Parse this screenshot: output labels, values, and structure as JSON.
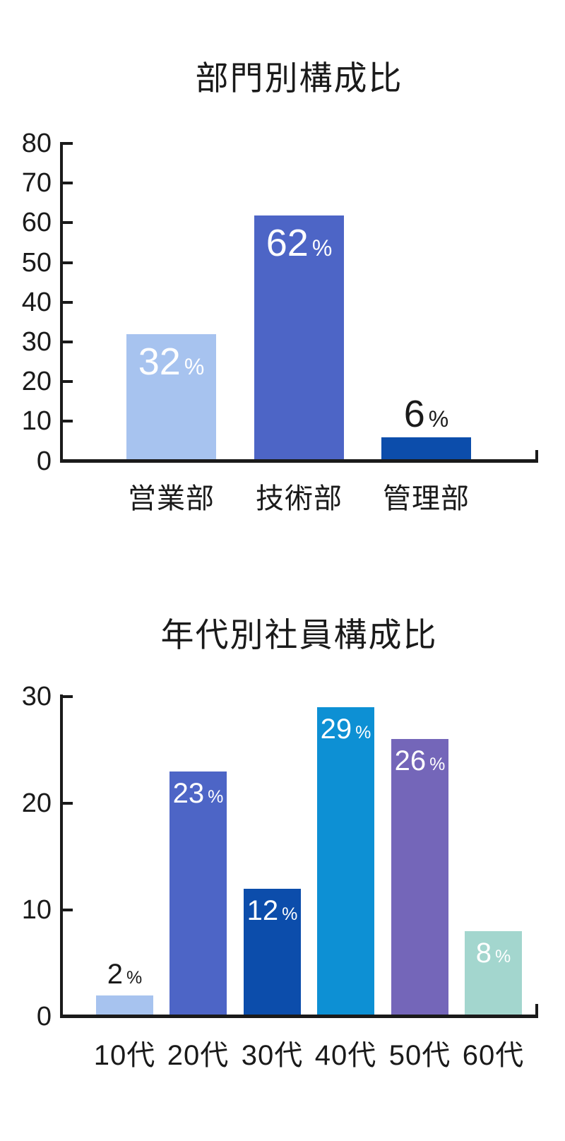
{
  "page": {
    "background": "#ffffff",
    "text_color": "#1a1a1a",
    "axis_color": "#1a1a1a",
    "value_label_inside_color": "#ffffff"
  },
  "chart_data": [
    {
      "type": "bar",
      "title": "部門別構成比",
      "categories": [
        "営業部",
        "技術部",
        "管理部"
      ],
      "values": [
        32,
        62,
        6
      ],
      "unit": "%",
      "bar_colors": [
        "#a7c3ef",
        "#4d65c6",
        "#0c4dab"
      ],
      "value_label_placement": [
        "inside-white",
        "inside-white",
        "above-black"
      ],
      "xlabel": "",
      "ylabel": "",
      "ylim": [
        0,
        80
      ],
      "yticks": [
        0,
        10,
        20,
        30,
        40,
        50,
        60,
        70,
        80
      ],
      "grid": false,
      "legend": "none"
    },
    {
      "type": "bar",
      "title": "年代別社員構成比",
      "categories": [
        "10代",
        "20代",
        "30代",
        "40代",
        "50代",
        "60代"
      ],
      "values": [
        2,
        23,
        12,
        29,
        26,
        8
      ],
      "unit": "%",
      "bar_colors": [
        "#a7c3ef",
        "#4d65c6",
        "#0c4dab",
        "#0d90d4",
        "#7466b9",
        "#a3d6ce"
      ],
      "value_label_placement": [
        "above-black",
        "inside-white",
        "inside-white",
        "inside-white",
        "inside-white",
        "inside-white"
      ],
      "xlabel": "",
      "ylabel": "",
      "ylim": [
        0,
        30
      ],
      "yticks": [
        0,
        10,
        20,
        30
      ],
      "grid": false,
      "legend": "none"
    }
  ]
}
